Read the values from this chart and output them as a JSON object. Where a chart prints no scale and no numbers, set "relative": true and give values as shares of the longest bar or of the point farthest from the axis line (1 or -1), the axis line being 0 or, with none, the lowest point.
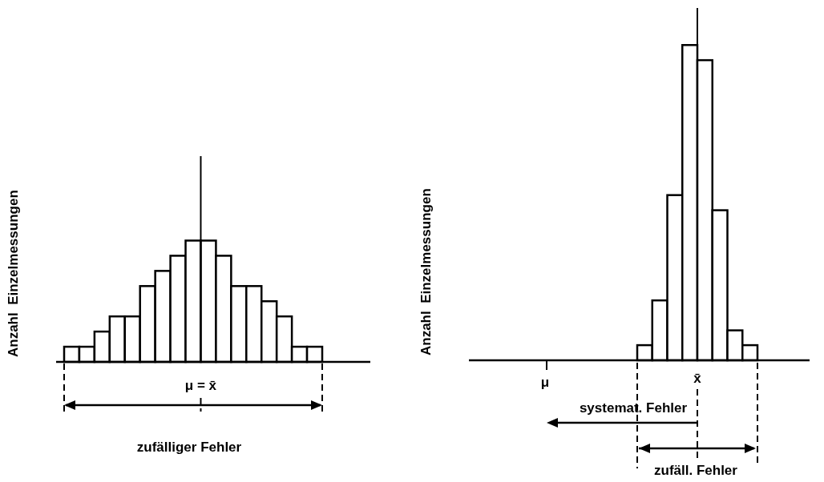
{
  "chart_data": [
    {
      "type": "bar",
      "ylabel": "Anzahl  Einzelmessungen",
      "relative": true,
      "color": "#ffffff",
      "categories": [
        null,
        null,
        null,
        null,
        null,
        null,
        null,
        null,
        null,
        null,
        null,
        null,
        null,
        null,
        null,
        null,
        null
      ],
      "values": [
        0.125,
        0.125,
        0.25,
        0.375,
        0.375,
        0.625,
        0.75,
        0.875,
        1,
        1,
        0.875,
        0.625,
        0.625,
        0.5,
        0.375,
        0.125,
        0.125
      ],
      "annotations": [
        "μ = x̄",
        "zufälliger Fehler"
      ]
    },
    {
      "type": "bar",
      "ylabel": "Anzahl  Einzelmessungen",
      "relative": true,
      "color": "#ffffff",
      "categories": [
        null,
        null,
        null,
        null,
        null,
        null,
        null,
        null
      ],
      "values": [
        0.048,
        0.19,
        0.524,
        1,
        0.952,
        0.476,
        0.095,
        0.048
      ],
      "annotations": [
        "x̄",
        "μ",
        "systemat. Fehler",
        "zufäll. Fehler"
      ]
    }
  ]
}
